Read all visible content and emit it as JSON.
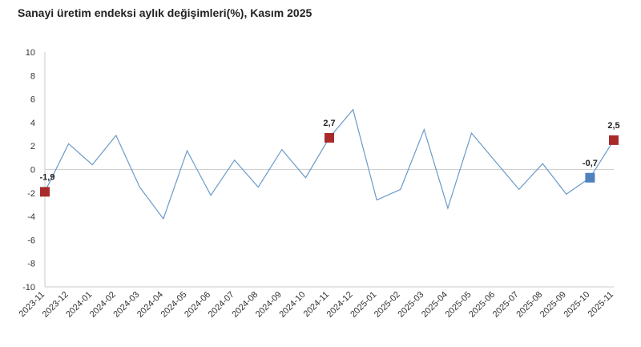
{
  "chart_data": {
    "type": "line",
    "title": "Sanayi üretim endeksi aylık değişimleri(%), Kasım 2025",
    "xlabel": "",
    "ylabel": "",
    "ylim": [
      -10,
      10
    ],
    "yticks": [
      10,
      8,
      6,
      4,
      2,
      0,
      -2,
      -4,
      -6,
      -8,
      -10
    ],
    "grid": false,
    "categories": [
      "2023-11",
      "2023-12",
      "2024-01",
      "2024-02",
      "2024-03",
      "2024-04",
      "2024-05",
      "2024-06",
      "2024-07",
      "2024-08",
      "2024-09",
      "2024-10",
      "2024-11",
      "2024-12",
      "2025-01",
      "2025-02",
      "2025-03",
      "2025-04",
      "2025-05",
      "2025-06",
      "2025-07",
      "2025-08",
      "2025-09",
      "2025-10",
      "2025-11"
    ],
    "series": [
      {
        "color": "#6a9ac8",
        "values": [
          -1.9,
          2.2,
          0.4,
          2.9,
          -1.5,
          -4.2,
          1.6,
          -2.2,
          0.8,
          -1.5,
          1.7,
          -0.7,
          2.7,
          5.1,
          -2.6,
          -1.7,
          3.4,
          -3.3,
          3.1,
          0.7,
          -1.7,
          0.5,
          -2.1,
          -0.7,
          2.5
        ]
      }
    ],
    "highlights": [
      {
        "index": 0,
        "label": "-1,9",
        "color": "#a92a2a"
      },
      {
        "index": 12,
        "label": "2,7",
        "color": "#a92a2a"
      },
      {
        "index": 23,
        "label": "-0,7",
        "color": "#4f81bd"
      },
      {
        "index": 24,
        "label": "2,5",
        "color": "#a92a2a"
      }
    ]
  }
}
